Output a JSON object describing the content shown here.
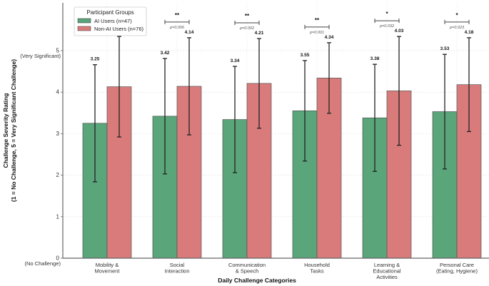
{
  "chart_data": {
    "type": "bar",
    "title": "",
    "xlabel": "Daily Challenge Categories",
    "ylabel": "Challenge Severity Rating",
    "ylabel_sub": "(1 = No Challenge, 5 = Very Significant Challenge)",
    "ylim": [
      0,
      6.15
    ],
    "yticks": [
      0,
      1,
      2,
      3,
      4,
      5
    ],
    "ytick_annotations": {
      "0": "(No Challenge)",
      "5": "(Very Significant)"
    },
    "grid": true,
    "legend": {
      "title": "Participant Groups",
      "placement": "top-left"
    },
    "categories": [
      [
        "Mobility &",
        "Movement"
      ],
      [
        "Social",
        "Interaction"
      ],
      [
        "Communication",
        "& Speech"
      ],
      [
        "Household",
        "Tasks"
      ],
      [
        "Learning &",
        "Educational",
        "Activities"
      ],
      [
        "Personal Care",
        "(Eating, Hygiene)"
      ]
    ],
    "series": [
      {
        "name": "AI Users (n=47)",
        "color": "#5aa57a",
        "values": [
          3.25,
          3.42,
          3.34,
          3.55,
          3.38,
          3.53
        ],
        "value_labels": [
          "3.25",
          "3.42",
          "3.34",
          "3.55",
          "3.38",
          "3.53"
        ],
        "errors": [
          1.41,
          1.39,
          1.28,
          1.21,
          1.29,
          1.38
        ]
      },
      {
        "name": "Non-AI Users (n=76)",
        "color": "#d97b7b",
        "values": [
          4.13,
          4.14,
          4.21,
          4.34,
          4.03,
          4.18
        ],
        "value_labels": [
          "",
          "4.14",
          "4.21",
          "4.34",
          "4.03",
          "4.18"
        ],
        "errors": [
          1.21,
          1.17,
          1.08,
          0.85,
          1.31,
          1.13
        ]
      }
    ],
    "significance": [
      null,
      {
        "stars": "**",
        "p": "p=0.006"
      },
      {
        "stars": "**",
        "p": "p=0.002"
      },
      {
        "stars": "**",
        "p": "p=0.001"
      },
      {
        "stars": "*",
        "p": "p=0.032"
      },
      {
        "stars": "*",
        "p": "p=0.023"
      }
    ]
  }
}
